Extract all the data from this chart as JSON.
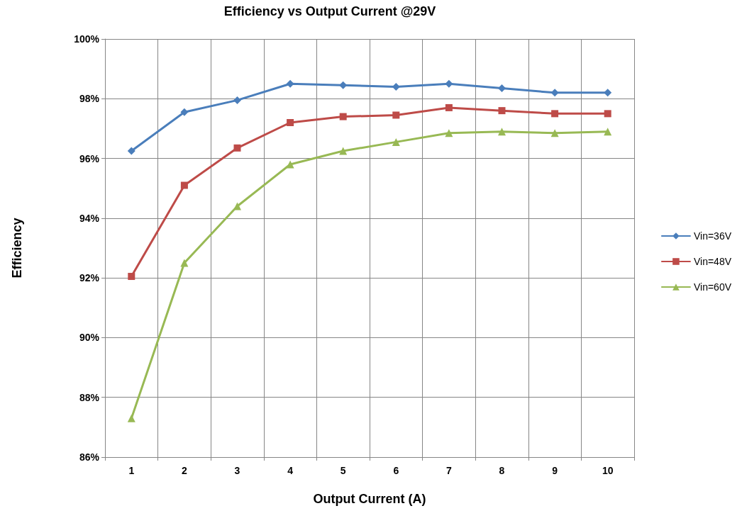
{
  "chart_data": {
    "type": "line",
    "title": "Efficiency vs Output Current @29V",
    "xlabel": "Output Current (A)",
    "ylabel": "Efficiency",
    "categories": [
      "1",
      "2",
      "3",
      "4",
      "5",
      "6",
      "7",
      "8",
      "9",
      "10"
    ],
    "series": [
      {
        "name": "Vin=36V",
        "color": "#4a7ebb",
        "marker": "diamond",
        "values": [
          96.25,
          97.55,
          97.95,
          98.5,
          98.45,
          98.4,
          98.5,
          98.35,
          98.2,
          98.2
        ]
      },
      {
        "name": "Vin=48V",
        "color": "#be4b48",
        "marker": "square",
        "values": [
          92.05,
          95.1,
          96.35,
          97.2,
          97.4,
          97.45,
          97.7,
          97.6,
          97.5,
          97.5
        ]
      },
      {
        "name": "Vin=60V",
        "color": "#98b954",
        "marker": "triangle",
        "values": [
          87.3,
          92.5,
          94.4,
          95.8,
          96.25,
          96.55,
          96.85,
          96.9,
          96.85,
          96.9
        ]
      }
    ],
    "ylim": [
      86,
      100
    ],
    "yticks": [
      {
        "value": 86,
        "label": "86%"
      },
      {
        "value": 88,
        "label": "88%"
      },
      {
        "value": 90,
        "label": "90%"
      },
      {
        "value": 92,
        "label": "92%"
      },
      {
        "value": 94,
        "label": "94%"
      },
      {
        "value": 96,
        "label": "96%"
      },
      {
        "value": 98,
        "label": "98%"
      },
      {
        "value": 100,
        "label": "100%"
      }
    ],
    "grid": true,
    "legend": "right",
    "line_style": "solid"
  }
}
